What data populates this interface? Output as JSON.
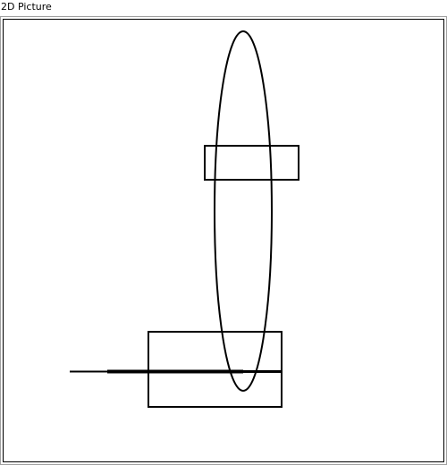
{
  "window": {
    "title": "2D Picture"
  },
  "colors": {
    "stroke": "#000000",
    "frame_border": "#a0a0a0",
    "background": "#ffffff"
  },
  "shapes": [
    {
      "name": "vertical-ellipse",
      "kind": "ellipse"
    },
    {
      "name": "upper-rectangle",
      "kind": "rectangle"
    },
    {
      "name": "lower-rectangle",
      "kind": "rectangle"
    },
    {
      "name": "horizontal-rod",
      "kind": "line"
    }
  ]
}
